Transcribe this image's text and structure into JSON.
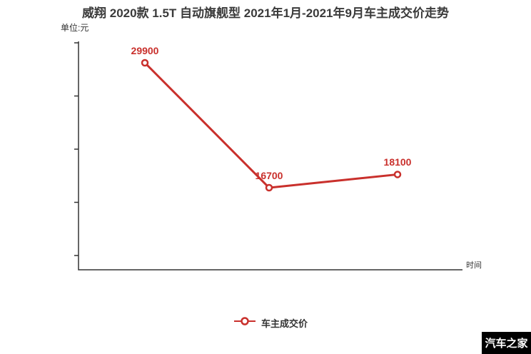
{
  "header": {
    "title": "威翔 2020款 1.5T 自动旗舰型 2021年1月-2021年9月车主成交价走势",
    "unit_label": "单位:元"
  },
  "chart_data": {
    "type": "line",
    "title": "威翔 2020款 1.5T 自动旗舰型 2021年1月-2021年9月车主成交价走势",
    "xlabel": "时间",
    "ylabel": "单位:元",
    "legend": [
      "车主成交价"
    ],
    "legend_position": "bottom",
    "grid": false,
    "x_axis": {
      "tick_labels_visible": false
    },
    "y_axis": {
      "tick_labels_visible": false,
      "tick_count": 5
    },
    "series": [
      {
        "name": "车主成交价",
        "color": "#c9302c",
        "marker": "hollow-circle",
        "values": [
          29900,
          16700,
          18100
        ],
        "point_labels": [
          "29900",
          "16700",
          "18100"
        ]
      }
    ]
  },
  "legend": {
    "item_label": "车主成交价"
  },
  "watermark": {
    "text": "汽车之家",
    "bg": "#000000",
    "fg": "#ffffff"
  },
  "colors": {
    "accent": "#c9302c",
    "text": "#333333",
    "axis": "#333333"
  }
}
